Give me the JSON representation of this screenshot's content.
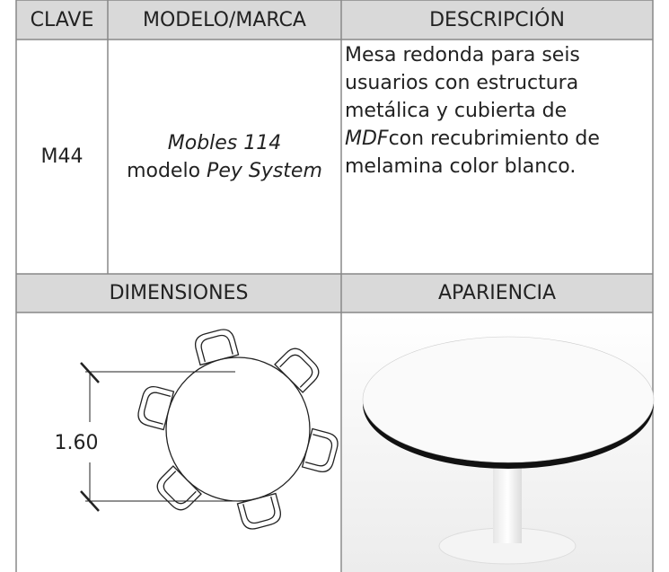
{
  "header": {
    "columns": [
      "CLAVE",
      "MODELO/MARCA",
      "DESCRIPCIÓN"
    ]
  },
  "row": {
    "clave": "M44",
    "modelo": {
      "line1": "Mobles 114",
      "prefix": "modelo ",
      "name": "Pey System"
    },
    "descripcion": {
      "before": "Mesa redonda para seis usuarios con estructura metálica y cubierta de ",
      "italic": "MDF",
      "after": "con recubrimiento de melamina color blanco."
    }
  },
  "sections": {
    "dimensiones": "DIMENSIONES",
    "apariencia": "APARIENCIA"
  },
  "drawing": {
    "dimension": "1.60"
  }
}
